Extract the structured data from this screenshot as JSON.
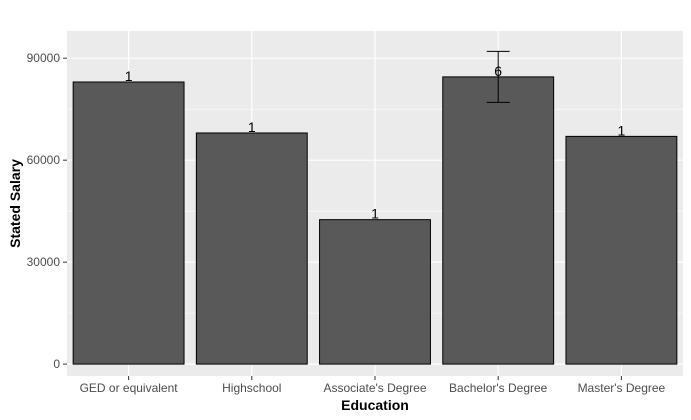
{
  "chart_data": {
    "type": "bar",
    "title": "",
    "xlabel": "Education",
    "ylabel": "Stated Salary",
    "categories": [
      "GED or equivalent",
      "Highschool",
      "Associate's Degree",
      "Bachelor's Degree",
      "Master's Degree"
    ],
    "values": [
      83000,
      68000,
      42500,
      84500,
      67000
    ],
    "counts": [
      "1",
      "1",
      "1",
      "6",
      "1"
    ],
    "error_bars": [
      null,
      null,
      null,
      [
        77000,
        92000
      ],
      null
    ],
    "ylim": [
      -3500,
      98000
    ],
    "yticks": [
      0,
      30000,
      60000,
      90000
    ],
    "ytick_labels": [
      "0",
      "30000",
      "60000",
      "90000"
    ],
    "grid": true,
    "legend": "none",
    "colors": {
      "panel": "#ebebeb",
      "grid_major": "#ffffff",
      "bar_fill": "#595959",
      "bar_stroke": "#000000",
      "tick_text": "#4d4d4d"
    }
  }
}
